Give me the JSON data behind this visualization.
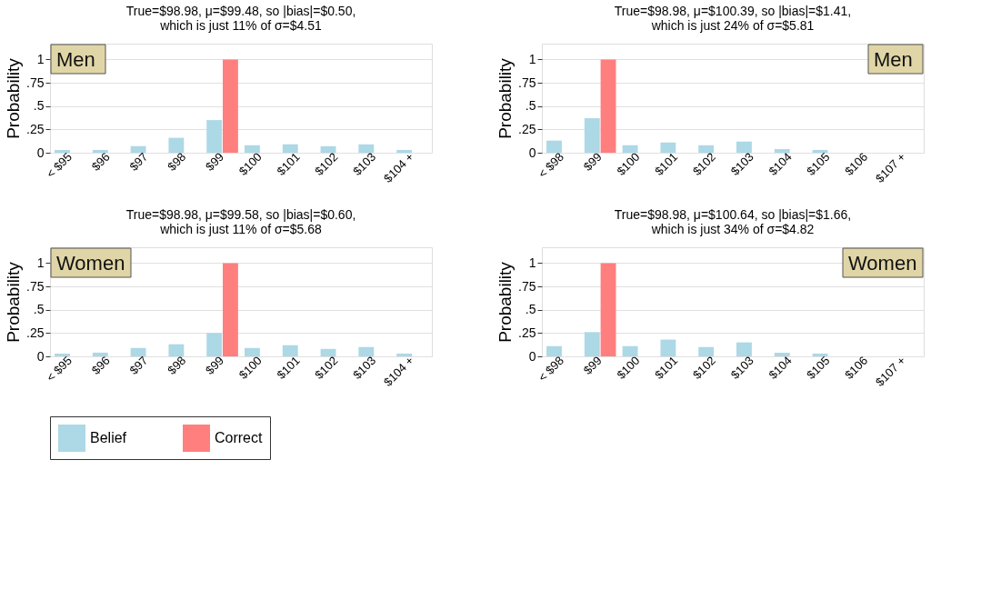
{
  "chart_data": [
    {
      "type": "bar",
      "title": "True=$98.98, μ=$99.48, so |bias|=$0.50,\nwhich is just 11% of σ=$4.51",
      "ylabel": "Probability",
      "annotations": [
        "Men"
      ],
      "categories": [
        "< $95",
        "$96",
        "$97",
        "$98",
        "$99",
        "$100",
        "$101",
        "$102",
        "$103",
        "$104 +"
      ],
      "series": [
        {
          "name": "Belief",
          "color": "#add8e6",
          "values": [
            0.03,
            0.03,
            0.07,
            0.16,
            0.35,
            0.08,
            0.09,
            0.07,
            0.09,
            0.03
          ]
        },
        {
          "name": "Correct",
          "color": "#ff7f7f",
          "values": [
            null,
            null,
            null,
            null,
            1,
            null,
            null,
            null,
            null,
            null
          ]
        }
      ],
      "ylim": [
        0,
        1.17
      ],
      "yticks": [
        0,
        {
          "value": 0.25,
          "label": ".25"
        },
        {
          "value": 0.5,
          "label": ".5"
        },
        {
          "value": 0.75,
          "label": ".75"
        },
        1
      ],
      "grid": "y",
      "legend": "bottom"
    },
    {
      "type": "bar",
      "title": "True=$98.98, μ=$100.39, so |bias|=$1.41,\nwhich is just 24% of σ=$5.81",
      "ylabel": "Probability",
      "annotations": [
        "Men"
      ],
      "categories": [
        "< $98",
        "$99",
        "$100",
        "$101",
        "$102",
        "$103",
        "$104",
        "$105",
        "$106",
        "$107 +"
      ],
      "series": [
        {
          "name": "Belief",
          "color": "#add8e6",
          "values": [
            0.13,
            0.37,
            0.08,
            0.11,
            0.08,
            0.12,
            0.04,
            0.03,
            null,
            null
          ]
        },
        {
          "name": "Correct",
          "color": "#ff7f7f",
          "values": [
            null,
            1,
            null,
            null,
            null,
            null,
            null,
            null,
            null,
            null
          ]
        }
      ],
      "ylim": [
        0,
        1.17
      ],
      "yticks": [
        0,
        {
          "value": 0.25,
          "label": ".25"
        },
        {
          "value": 0.5,
          "label": ".5"
        },
        {
          "value": 0.75,
          "label": ".75"
        },
        1
      ],
      "grid": "y",
      "legend": "bottom"
    },
    {
      "type": "bar",
      "title": "True=$98.98, μ=$99.58, so |bias|=$0.60,\nwhich is just 11% of σ=$5.68",
      "ylabel": "Probability",
      "annotations": [
        "Women"
      ],
      "categories": [
        "< $95",
        "$96",
        "$97",
        "$98",
        "$99",
        "$100",
        "$101",
        "$102",
        "$103",
        "$104 +"
      ],
      "series": [
        {
          "name": "Belief",
          "color": "#add8e6",
          "values": [
            0.03,
            0.04,
            0.09,
            0.13,
            0.25,
            0.09,
            0.12,
            0.08,
            0.1,
            0.03
          ]
        },
        {
          "name": "Correct",
          "color": "#ff7f7f",
          "values": [
            null,
            null,
            null,
            null,
            1,
            null,
            null,
            null,
            null,
            null
          ]
        }
      ],
      "ylim": [
        0,
        1.17
      ],
      "yticks": [
        0,
        {
          "value": 0.25,
          "label": ".25"
        },
        {
          "value": 0.5,
          "label": ".5"
        },
        {
          "value": 0.75,
          "label": ".75"
        },
        1
      ],
      "grid": "y",
      "legend": "bottom"
    },
    {
      "type": "bar",
      "title": "True=$98.98, μ=$100.64, so |bias|=$1.66,\nwhich is just 34% of σ=$4.82",
      "ylabel": "Probability",
      "annotations": [
        "Women"
      ],
      "categories": [
        "< $98",
        "$99",
        "$100",
        "$101",
        "$102",
        "$103",
        "$104",
        "$105",
        "$106",
        "$107 +"
      ],
      "series": [
        {
          "name": "Belief",
          "color": "#add8e6",
          "values": [
            0.11,
            0.26,
            0.11,
            0.18,
            0.1,
            0.15,
            0.04,
            0.03,
            null,
            null
          ]
        },
        {
          "name": "Correct",
          "color": "#ff7f7f",
          "values": [
            null,
            1,
            null,
            null,
            null,
            null,
            null,
            null,
            null,
            null
          ]
        }
      ],
      "ylim": [
        0,
        1.17
      ],
      "yticks": [
        0,
        {
          "value": 0.25,
          "label": ".25"
        },
        {
          "value": 0.5,
          "label": ".5"
        },
        {
          "value": 0.75,
          "label": ".75"
        },
        1
      ],
      "grid": "y",
      "legend": "bottom"
    }
  ]
}
